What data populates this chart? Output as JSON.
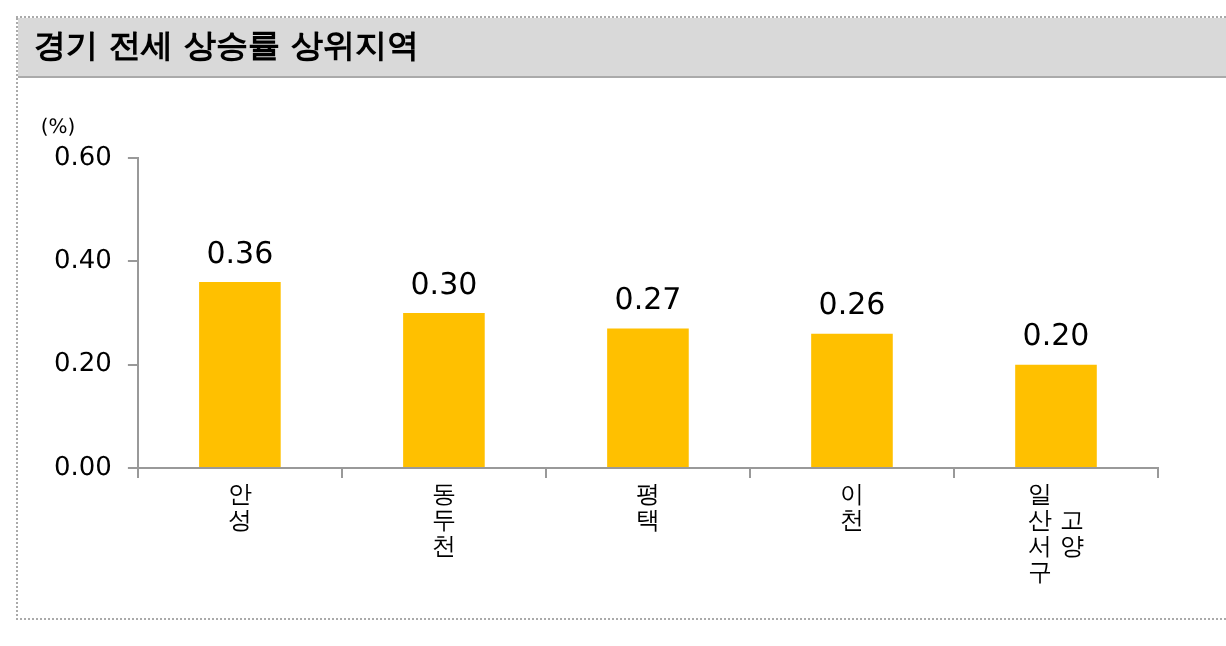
{
  "chart_data": {
    "type": "bar",
    "title": "경기 전세 상승률 상위지역",
    "ylabel": "(%)",
    "categories": [
      "안성",
      "동두천",
      "평택",
      "이천",
      "고양 일산서구"
    ],
    "values": [
      0.36,
      0.3,
      0.27,
      0.26,
      0.2
    ],
    "color": "#ffc000",
    "ylim": [
      0,
      0.6
    ],
    "yticks": [
      {
        "value": 0,
        "label": "0.00"
      },
      {
        "value": 0.2,
        "label": "0.20"
      },
      {
        "value": 0.4,
        "label": "0.40"
      },
      {
        "value": 0.6,
        "label": "0.60"
      }
    ],
    "value_labels": [
      "0.36",
      "0.30",
      "0.27",
      "0.26",
      "0.20"
    ],
    "grid": false,
    "legend": false
  }
}
